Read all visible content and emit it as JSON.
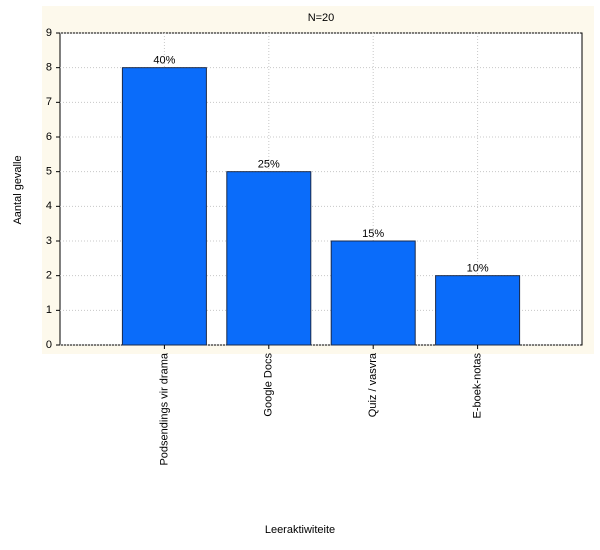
{
  "chart_data": {
    "type": "bar",
    "title": "N=20",
    "x_label": "Leeraktiwiteite",
    "y_label": "Aantal gevalle",
    "categories": [
      "Podsendings vir drama",
      "Google Docs",
      "Quiz / vasvra",
      "E-boek-notas"
    ],
    "values": [
      8,
      5,
      3,
      2
    ],
    "value_labels": [
      "40%",
      "25%",
      "15%",
      "10%"
    ],
    "color": "#0a6cfa",
    "ylim": [
      0,
      9
    ],
    "yticks": [
      0,
      1,
      2,
      3,
      4,
      5,
      6,
      7,
      8,
      9
    ],
    "grid": true
  }
}
